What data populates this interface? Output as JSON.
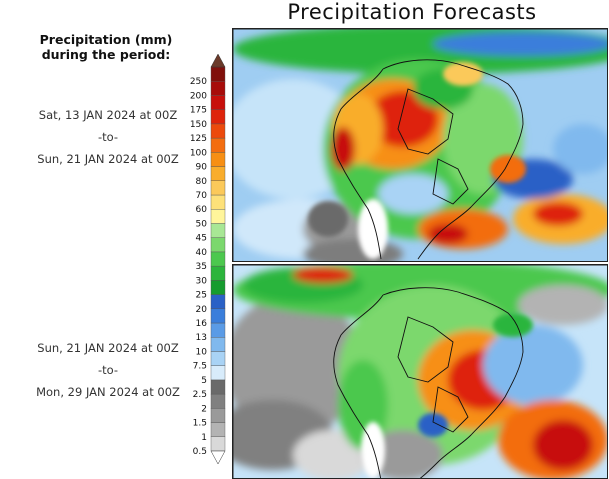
{
  "header": {
    "title": "Precipitation Forecasts"
  },
  "legend": {
    "heading_line1": "Precipitation (mm)",
    "heading_line2": "during the period:",
    "bins": [
      {
        "label": "0.5",
        "color": "#d9d9d9"
      },
      {
        "label": "1",
        "color": "#b3b3b3"
      },
      {
        "label": "1.5",
        "color": "#9a9a9a"
      },
      {
        "label": "2",
        "color": "#808080"
      },
      {
        "label": "2.5",
        "color": "#6a6a6a"
      },
      {
        "label": "5",
        "color": "#d8ecfb"
      },
      {
        "label": "7.5",
        "color": "#a9d3f5"
      },
      {
        "label": "10",
        "color": "#80b9ee"
      },
      {
        "label": "13",
        "color": "#5a9be6"
      },
      {
        "label": "16",
        "color": "#3a7edb"
      },
      {
        "label": "20",
        "color": "#2a61c6"
      },
      {
        "label": "25",
        "color": "#169c2e"
      },
      {
        "label": "30",
        "color": "#2cb53c"
      },
      {
        "label": "35",
        "color": "#4cc84e"
      },
      {
        "label": "40",
        "color": "#7bd86d"
      },
      {
        "label": "45",
        "color": "#a8e795"
      },
      {
        "label": "50",
        "color": "#fff59b"
      },
      {
        "label": "60",
        "color": "#fde17a"
      },
      {
        "label": "70",
        "color": "#fbc95a"
      },
      {
        "label": "80",
        "color": "#f9ad2c"
      },
      {
        "label": "90",
        "color": "#f78f14"
      },
      {
        "label": "100",
        "color": "#f36d10"
      },
      {
        "label": "125",
        "color": "#ec4a0c"
      },
      {
        "label": "150",
        "color": "#de240b"
      },
      {
        "label": "175",
        "color": "#c70f0b"
      },
      {
        "label": "200",
        "color": "#a70c0a"
      },
      {
        "label": "250",
        "color": "#80100b"
      }
    ],
    "top_arrow_color": "#6b3a2a",
    "bottom_arrow_color": "#ffffff"
  },
  "periods": [
    {
      "start": "Sat, 13 JAN 2024 at 00Z",
      "sep": "-to-",
      "end": "Sun, 21 JAN 2024 at 00Z"
    },
    {
      "start": "Sun, 21 JAN 2024 at 00Z",
      "sep": "-to-",
      "end": "Mon, 29 JAN 2024 at 00Z"
    }
  ],
  "maps": [
    {
      "name": "week-1"
    },
    {
      "name": "week-2"
    }
  ]
}
